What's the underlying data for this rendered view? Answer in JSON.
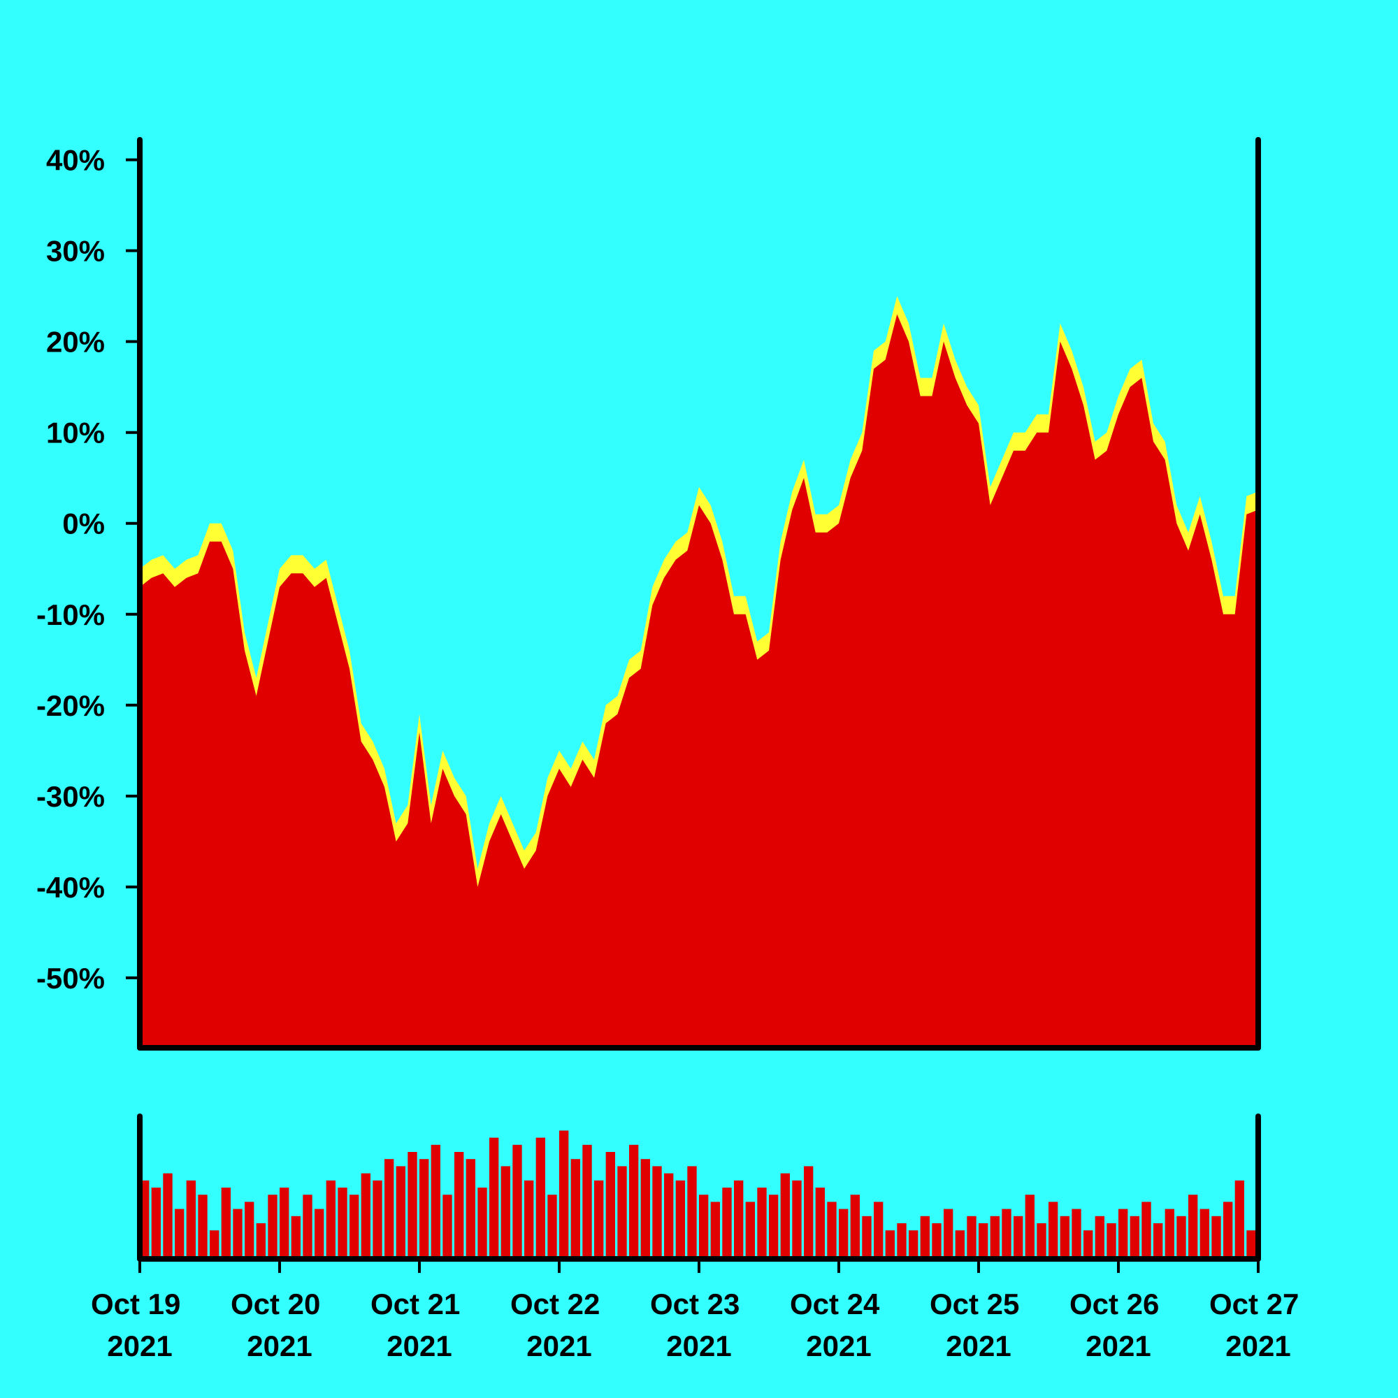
{
  "chart_data": [
    {
      "type": "area-band",
      "xlim": [
        "2021-10-19",
        "2021-10-27"
      ],
      "ylim": [
        -57.7,
        42.2
      ],
      "yticks": [
        {
          "value": 40,
          "label": "40%"
        },
        {
          "value": 30,
          "label": "30%"
        },
        {
          "value": 20,
          "label": "20%"
        },
        {
          "value": 10,
          "label": "10%"
        },
        {
          "value": 0,
          "label": "0%"
        },
        {
          "value": -10,
          "label": "-10%"
        },
        {
          "value": -20,
          "label": "-20%"
        },
        {
          "value": -30,
          "label": "-30%"
        },
        {
          "value": -40,
          "label": "-40%"
        },
        {
          "value": -50,
          "label": "-50%"
        }
      ],
      "series": [
        {
          "color": "#ffff33",
          "values": [
            -5,
            -4,
            -3.5,
            -5,
            -4,
            -3.5,
            0,
            0,
            -3,
            -12,
            -17,
            -11,
            -5,
            -3.5,
            -3.5,
            -5,
            -4,
            -9,
            -14,
            -22,
            -24,
            -27,
            -33,
            -31,
            -21,
            -31,
            -25,
            -28,
            -30,
            -38,
            -33,
            -30,
            -33,
            -36,
            -34,
            -28,
            -25,
            -27,
            -24,
            -26,
            -20,
            -19,
            -15,
            -14,
            -7,
            -4,
            -2,
            -1,
            4,
            2,
            -2,
            -8,
            -8,
            -13,
            -12,
            -2,
            3.5,
            7,
            1,
            1,
            2,
            7,
            10,
            19,
            20,
            25,
            22,
            16,
            16,
            22,
            18,
            15,
            13,
            4,
            7,
            10,
            10,
            12,
            12,
            22,
            19,
            15,
            9,
            10,
            14,
            17,
            18,
            11,
            9,
            2,
            -1,
            3,
            -2,
            -8,
            -8,
            3,
            3.5
          ]
        },
        {
          "color": "#e00000",
          "values": [
            -7,
            -6,
            -5.5,
            -7,
            -6,
            -5.5,
            -2,
            -2,
            -5,
            -14,
            -19,
            -13,
            -7,
            -5.5,
            -5.5,
            -7,
            -6,
            -11,
            -16,
            -24,
            -26,
            -29,
            -35,
            -33,
            -23,
            -33,
            -27,
            -30,
            -32,
            -40,
            -35,
            -32,
            -35,
            -38,
            -36,
            -30,
            -27,
            -29,
            -26,
            -28,
            -22,
            -21,
            -17,
            -16,
            -9,
            -6,
            -4,
            -3,
            2,
            0,
            -4,
            -10,
            -10,
            -15,
            -14,
            -4,
            1.5,
            5,
            -1,
            -1,
            0,
            5,
            8,
            17,
            18,
            23,
            20,
            14,
            14,
            20,
            16,
            13,
            11,
            2,
            5,
            8,
            8,
            10,
            10,
            20,
            17,
            13,
            7,
            8,
            12,
            15,
            16,
            9,
            7,
            0,
            -3,
            1,
            -4,
            -10,
            -10,
            1,
            1.5
          ]
        }
      ]
    },
    {
      "type": "bar",
      "xlim": [
        "2021-10-19",
        "2021-10-27"
      ],
      "ylim": [
        0,
        100
      ],
      "color": "#e00000",
      "values": [
        55,
        50,
        60,
        35,
        55,
        45,
        20,
        50,
        35,
        40,
        25,
        45,
        50,
        30,
        45,
        35,
        55,
        50,
        45,
        60,
        55,
        70,
        65,
        75,
        70,
        80,
        45,
        75,
        70,
        50,
        85,
        65,
        80,
        55,
        85,
        45,
        90,
        70,
        80,
        55,
        75,
        65,
        80,
        70,
        65,
        60,
        55,
        65,
        45,
        40,
        50,
        55,
        40,
        50,
        45,
        60,
        55,
        65,
        50,
        40,
        35,
        45,
        30,
        40,
        20,
        25,
        20,
        30,
        25,
        35,
        20,
        30,
        25,
        30,
        35,
        30,
        45,
        25,
        40,
        30,
        35,
        20,
        30,
        25,
        35,
        30,
        40,
        25,
        35,
        30,
        45,
        35,
        30,
        40,
        55,
        20
      ],
      "xticks": [
        {
          "value": "2021-10-19",
          "label": "Oct 19 2021"
        },
        {
          "value": "2021-10-20",
          "label": "Oct 20 2021"
        },
        {
          "value": "2021-10-21",
          "label": "Oct 21 2021"
        },
        {
          "value": "2021-10-22",
          "label": "Oct 22 2021"
        },
        {
          "value": "2021-10-23",
          "label": "Oct 23 2021"
        },
        {
          "value": "2021-10-24",
          "label": "Oct 24 2021"
        },
        {
          "value": "2021-10-25",
          "label": "Oct 25 2021"
        },
        {
          "value": "2021-10-26",
          "label": "Oct 26 2021"
        },
        {
          "value": "2021-10-27",
          "label": "Oct 27 2021"
        }
      ]
    }
  ]
}
